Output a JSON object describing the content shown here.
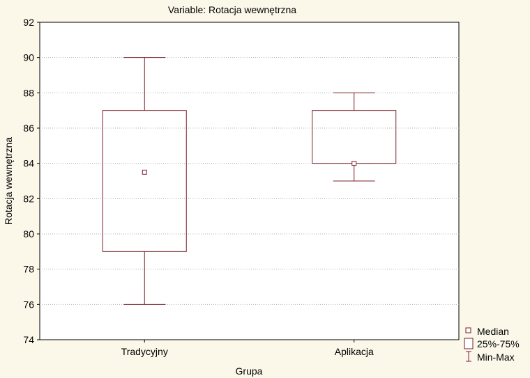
{
  "chart_data": {
    "type": "boxplot",
    "title": "Variable: Rotacja wewnętrzna",
    "xlabel": "Grupa",
    "ylabel": "Rotacja wewnętrzna",
    "ylim": [
      74,
      92
    ],
    "yticks": [
      74,
      76,
      78,
      80,
      82,
      84,
      86,
      88,
      90,
      92
    ],
    "grid": "dotted-horizontal",
    "categories": [
      "Tradycyjny",
      "Aplikacja"
    ],
    "groups": [
      {
        "name": "Tradycyjny",
        "median": 83.5,
        "q1": 79,
        "q3": 87,
        "min": 76,
        "max": 90
      },
      {
        "name": "Aplikacja",
        "median": 84,
        "q1": 84,
        "q3": 87,
        "min": 83,
        "max": 88
      }
    ],
    "legend": {
      "position": "bottom-right",
      "items": [
        {
          "key": "median",
          "label": "Median"
        },
        {
          "key": "box",
          "label": "25%-75%"
        },
        {
          "key": "whisker",
          "label": "Min-Max"
        }
      ]
    },
    "colors": {
      "background": "#fbf8ea",
      "plot_background": "#ffffff",
      "box_stroke": "#7a1f2b",
      "axis": "#000000",
      "grid": "#b0b0b0"
    }
  }
}
